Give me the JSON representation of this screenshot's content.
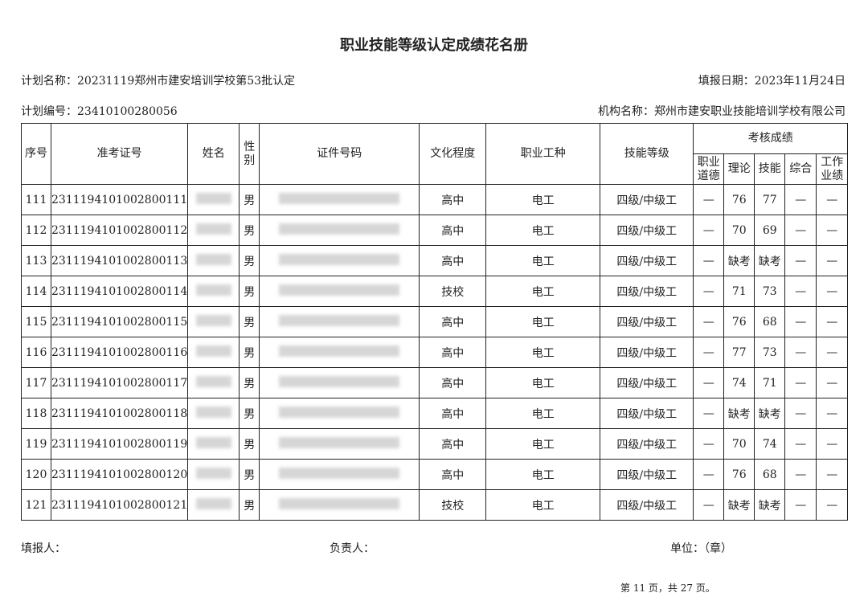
{
  "title": "职业技能等级认定成绩花名册",
  "plan_name": "计划名称：20231119郑州市建安培训学校第53批认定",
  "fill_date": "填报日期：2023年11月24日",
  "plan_no": "计划编号：23410100280056",
  "org_name": "机构名称：郑州市建安职业技能培训学校有限公司",
  "headers": {
    "seq": "序号",
    "ticket": "准考证号",
    "name": "姓名",
    "gender": "性别",
    "id": "证件号码",
    "edu": "文化程度",
    "job": "职业工种",
    "level": "技能等级",
    "scores": "考核成绩",
    "ethics": "职业道德",
    "theory": "理论",
    "skill": "技能",
    "overall": "综合",
    "performance": "工作业绩"
  },
  "rows": [
    {
      "seq": "111",
      "ticket": "2311194101002800111",
      "gender": "男",
      "edu": "高中",
      "job": "电工",
      "level": "四级/中级工",
      "ethics": "—",
      "theory": "76",
      "skill": "77",
      "overall": "—",
      "performance": "—"
    },
    {
      "seq": "112",
      "ticket": "2311194101002800112",
      "gender": "男",
      "edu": "高中",
      "job": "电工",
      "level": "四级/中级工",
      "ethics": "—",
      "theory": "70",
      "skill": "69",
      "overall": "—",
      "performance": "—"
    },
    {
      "seq": "113",
      "ticket": "2311194101002800113",
      "gender": "男",
      "edu": "高中",
      "job": "电工",
      "level": "四级/中级工",
      "ethics": "—",
      "theory": "缺考",
      "skill": "缺考",
      "overall": "—",
      "performance": "—"
    },
    {
      "seq": "114",
      "ticket": "2311194101002800114",
      "gender": "男",
      "edu": "技校",
      "job": "电工",
      "level": "四级/中级工",
      "ethics": "—",
      "theory": "71",
      "skill": "73",
      "overall": "—",
      "performance": "—"
    },
    {
      "seq": "115",
      "ticket": "2311194101002800115",
      "gender": "男",
      "edu": "高中",
      "job": "电工",
      "level": "四级/中级工",
      "ethics": "—",
      "theory": "76",
      "skill": "68",
      "overall": "—",
      "performance": "—"
    },
    {
      "seq": "116",
      "ticket": "2311194101002800116",
      "gender": "男",
      "edu": "高中",
      "job": "电工",
      "level": "四级/中级工",
      "ethics": "—",
      "theory": "77",
      "skill": "73",
      "overall": "—",
      "performance": "—"
    },
    {
      "seq": "117",
      "ticket": "2311194101002800117",
      "gender": "男",
      "edu": "高中",
      "job": "电工",
      "level": "四级/中级工",
      "ethics": "—",
      "theory": "74",
      "skill": "71",
      "overall": "—",
      "performance": "—"
    },
    {
      "seq": "118",
      "ticket": "2311194101002800118",
      "gender": "男",
      "edu": "高中",
      "job": "电工",
      "level": "四级/中级工",
      "ethics": "—",
      "theory": "缺考",
      "skill": "缺考",
      "overall": "—",
      "performance": "—"
    },
    {
      "seq": "119",
      "ticket": "2311194101002800119",
      "gender": "男",
      "edu": "高中",
      "job": "电工",
      "level": "四级/中级工",
      "ethics": "—",
      "theory": "70",
      "skill": "74",
      "overall": "—",
      "performance": "—"
    },
    {
      "seq": "120",
      "ticket": "2311194101002800120",
      "gender": "男",
      "edu": "高中",
      "job": "电工",
      "level": "四级/中级工",
      "ethics": "—",
      "theory": "76",
      "skill": "68",
      "overall": "—",
      "performance": "—"
    },
    {
      "seq": "121",
      "ticket": "2311194101002800121",
      "gender": "男",
      "edu": "技校",
      "job": "电工",
      "level": "四级/中级工",
      "ethics": "—",
      "theory": "缺考",
      "skill": "缺考",
      "overall": "—",
      "performance": "—"
    }
  ],
  "footer": {
    "filler": "填报人：",
    "manager": "负责人：",
    "unit": "单位：（章）",
    "page": "第 11 页，共 27 页。"
  }
}
